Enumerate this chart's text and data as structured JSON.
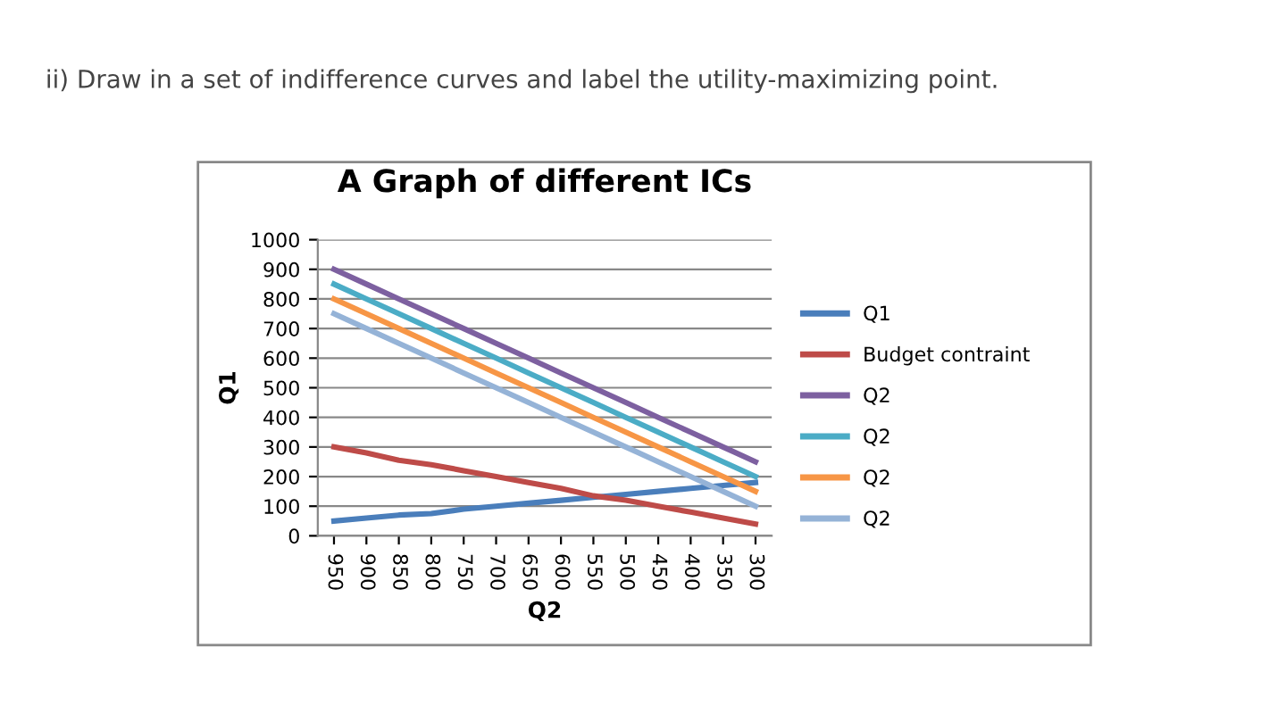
{
  "chart_data": {
    "type": "line",
    "title": "A Graph of different ICs",
    "xlabel": "Q2",
    "ylabel": "Q1",
    "annotations": [
      "ii) Draw in a set of indifference curves and label the utility-maximizing point."
    ],
    "categories": [
      "950",
      "900",
      "850",
      "800",
      "750",
      "700",
      "650",
      "600",
      "550",
      "500",
      "450",
      "400",
      "350",
      "300"
    ],
    "series": [
      {
        "name": "Q1",
        "color": "#4a7ebb",
        "values": [
          50,
          60,
          70,
          75,
          90,
          100,
          110,
          120,
          130,
          140,
          150,
          160,
          170,
          180
        ]
      },
      {
        "name": "Budget contraint",
        "color": "#be4b48",
        "values": [
          300,
          280,
          255,
          240,
          220,
          200,
          180,
          160,
          135,
          120,
          100,
          80,
          60,
          40
        ]
      },
      {
        "name": "Q2",
        "color": "#7d60a0",
        "values": [
          900,
          850,
          800,
          750,
          700,
          650,
          600,
          550,
          500,
          450,
          400,
          350,
          300,
          250
        ]
      },
      {
        "name": "Q2",
        "color": "#4bacc6",
        "values": [
          850,
          800,
          750,
          700,
          650,
          600,
          550,
          500,
          450,
          400,
          350,
          300,
          250,
          200
        ]
      },
      {
        "name": "Q2",
        "color": "#f79646",
        "values": [
          800,
          750,
          700,
          650,
          600,
          550,
          500,
          450,
          400,
          350,
          300,
          250,
          200,
          150
        ]
      },
      {
        "name": "Q2",
        "color": "#95b3d7",
        "values": [
          750,
          700,
          650,
          600,
          550,
          500,
          450,
          400,
          350,
          300,
          250,
          200,
          150,
          100
        ]
      }
    ],
    "ylim": [
      0,
      1000
    ],
    "yticks": [
      0,
      100,
      200,
      300,
      400,
      500,
      600,
      700,
      800,
      900,
      1000
    ],
    "grid": "y",
    "legend": "right",
    "marker": "none",
    "line_style": "solid"
  }
}
